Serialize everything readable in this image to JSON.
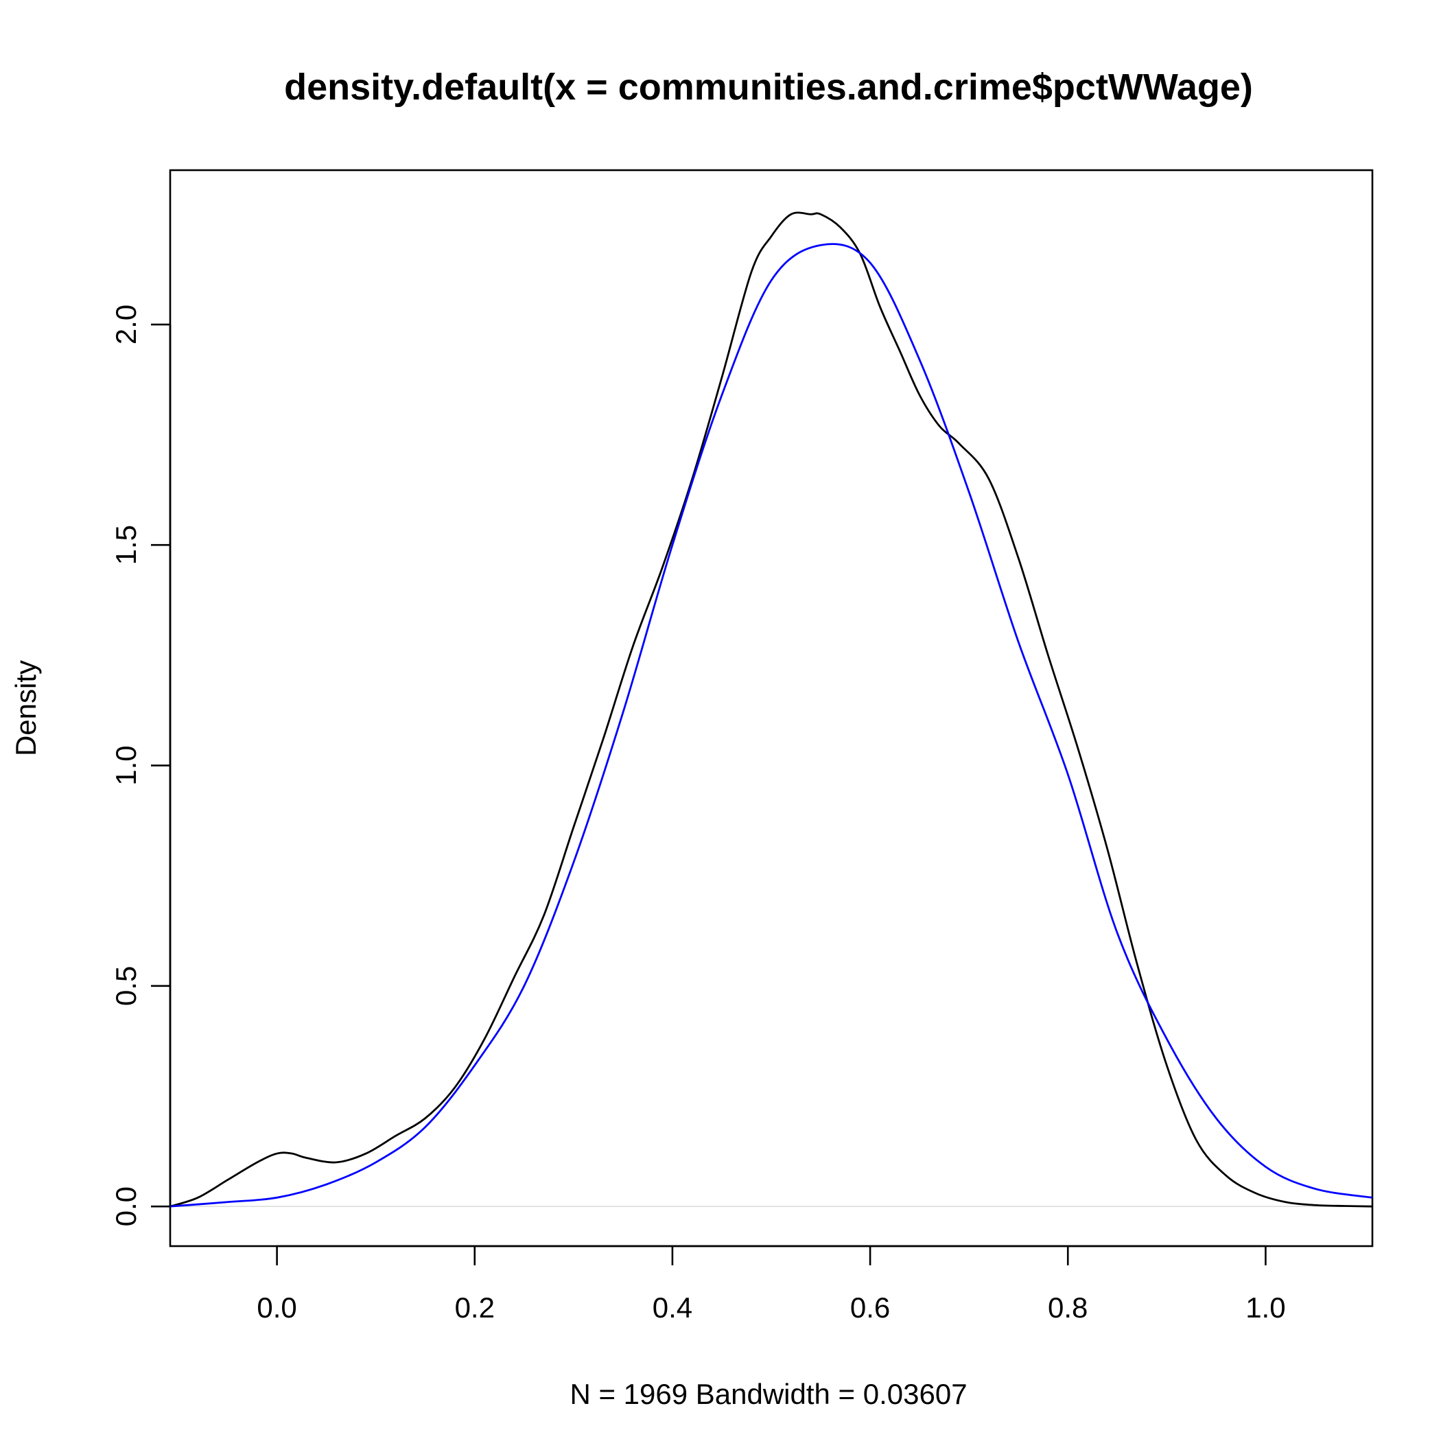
{
  "chart_data": {
    "type": "line",
    "title": "density.default(x = communities.and.crime$pctWWage)",
    "xlabel": "N = 1969   Bandwidth = 0.03607",
    "ylabel": "Density",
    "xlim": [
      -0.108,
      1.108
    ],
    "ylim": [
      -0.09,
      2.35
    ],
    "x_ticks": [
      0.0,
      0.2,
      0.4,
      0.6,
      0.8,
      1.0
    ],
    "x_tick_labels": [
      "0.0",
      "0.2",
      "0.4",
      "0.6",
      "0.8",
      "1.0"
    ],
    "y_ticks": [
      0.0,
      0.5,
      1.0,
      1.5,
      2.0
    ],
    "y_tick_labels": [
      "0.0",
      "0.5",
      "1.0",
      "1.5",
      "2.0"
    ],
    "grid": false,
    "zero_line": true,
    "series": [
      {
        "color": "#000000",
        "x": [
          -0.108,
          -0.08,
          -0.05,
          -0.02,
          0.0,
          0.015,
          0.03,
          0.06,
          0.09,
          0.12,
          0.15,
          0.18,
          0.21,
          0.24,
          0.27,
          0.3,
          0.33,
          0.36,
          0.39,
          0.42,
          0.45,
          0.48,
          0.5,
          0.52,
          0.54,
          0.55,
          0.57,
          0.59,
          0.61,
          0.63,
          0.65,
          0.67,
          0.69,
          0.72,
          0.75,
          0.78,
          0.81,
          0.84,
          0.87,
          0.9,
          0.93,
          0.96,
          0.99,
          1.02,
          1.05,
          1.08,
          1.108
        ],
        "y": [
          0.0,
          0.02,
          0.06,
          0.1,
          0.12,
          0.12,
          0.11,
          0.1,
          0.12,
          0.16,
          0.2,
          0.27,
          0.38,
          0.52,
          0.66,
          0.86,
          1.06,
          1.27,
          1.45,
          1.65,
          1.88,
          2.12,
          2.2,
          2.25,
          2.25,
          2.25,
          2.22,
          2.16,
          2.04,
          1.94,
          1.84,
          1.77,
          1.73,
          1.65,
          1.47,
          1.25,
          1.04,
          0.81,
          0.55,
          0.32,
          0.15,
          0.07,
          0.03,
          0.01,
          0.003,
          0.001,
          0.0
        ]
      },
      {
        "color": "#0000ff",
        "x": [
          -0.108,
          -0.05,
          0.0,
          0.05,
          0.1,
          0.15,
          0.2,
          0.25,
          0.3,
          0.35,
          0.4,
          0.45,
          0.5,
          0.55,
          0.6,
          0.65,
          0.7,
          0.75,
          0.8,
          0.85,
          0.9,
          0.95,
          1.0,
          1.05,
          1.108
        ],
        "y": [
          0.0,
          0.01,
          0.02,
          0.05,
          0.1,
          0.18,
          0.32,
          0.5,
          0.78,
          1.12,
          1.5,
          1.84,
          2.1,
          2.18,
          2.14,
          1.92,
          1.62,
          1.28,
          0.98,
          0.62,
          0.38,
          0.2,
          0.09,
          0.04,
          0.02
        ]
      }
    ]
  }
}
